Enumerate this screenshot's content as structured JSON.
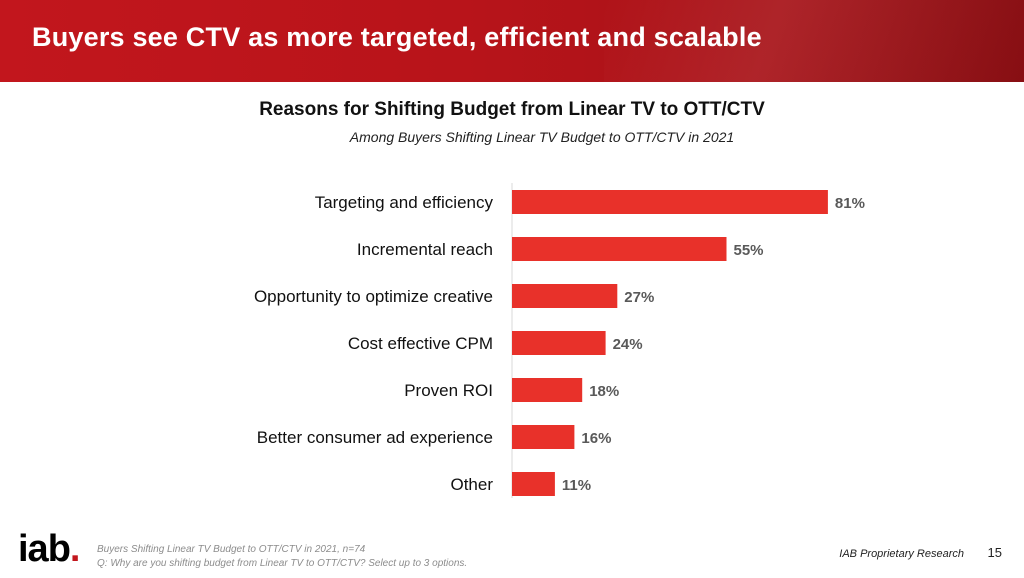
{
  "slide": {
    "headline": "Buyers see CTV as more targeted, efficient and scalable"
  },
  "chart_data": {
    "type": "bar",
    "orientation": "horizontal",
    "title": "Reasons for Shifting Budget from Linear TV to OTT/CTV",
    "subtitle": "Among Buyers Shifting Linear TV Budget to OTT/CTV in 2021",
    "categories": [
      "Targeting and efficiency",
      "Incremental reach",
      "Opportunity to optimize creative",
      "Cost effective CPM",
      "Proven ROI",
      "Better consumer ad experience",
      "Other"
    ],
    "values": [
      81,
      55,
      27,
      24,
      18,
      16,
      11
    ],
    "value_labels": [
      "81%",
      "55%",
      "27%",
      "24%",
      "18%",
      "16%",
      "11%"
    ],
    "unit": "%",
    "xlim": [
      0,
      100
    ],
    "bar_color": "#e8312a",
    "grid": false,
    "legend": "none"
  },
  "footer": {
    "logo": "iab",
    "note_line1": "Buyers Shifting Linear TV Budget to OTT/CTV in 2021, n=74",
    "note_line2": "Q: Why are you shifting budget from Linear TV to OTT/CTV? Select up to 3 options.",
    "source": "IAB Proprietary Research",
    "page_number": "15"
  },
  "colors": {
    "banner": "#c2161d",
    "accent": "#e8312a"
  }
}
